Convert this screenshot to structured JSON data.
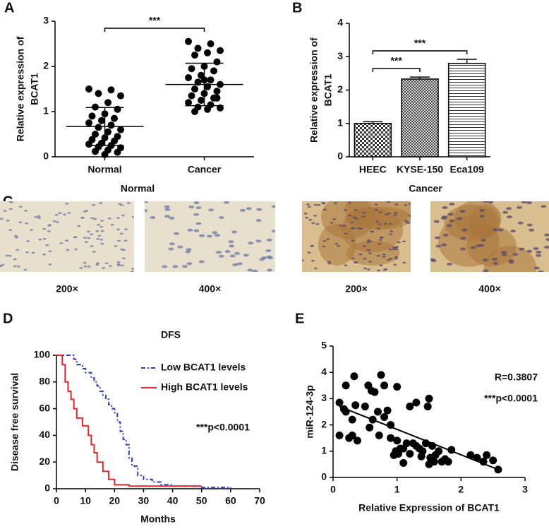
{
  "chart_data": [
    {
      "panel": "A",
      "type": "strip",
      "ylabel": [
        "Relative expression of",
        "BCAT1"
      ],
      "categories": [
        "Normal",
        "Cancer"
      ],
      "values": [
        [
          1.5,
          1.48,
          1.4,
          1.35,
          1.2,
          1.1,
          1.05,
          0.95,
          0.9,
          0.85,
          0.8,
          0.75,
          0.7,
          0.65,
          0.6,
          0.55,
          0.5,
          0.45,
          0.42,
          0.38,
          0.35,
          0.3,
          0.28,
          0.25,
          0.22,
          0.2,
          0.15,
          0.12,
          0.1,
          0.05
        ],
        [
          2.55,
          2.5,
          2.4,
          2.35,
          2.3,
          2.25,
          2.1,
          2.0,
          1.95,
          1.9,
          1.8,
          1.75,
          1.7,
          1.65,
          1.6,
          1.55,
          1.5,
          1.45,
          1.4,
          1.35,
          1.3,
          1.25,
          1.2,
          1.15,
          1.1,
          1.08,
          1.05,
          1.0,
          1.3,
          1.7
        ]
      ],
      "mean": [
        0.67,
        1.6
      ],
      "error": [
        0.42,
        0.47
      ],
      "color": "#000000",
      "ylim": [
        0,
        3
      ],
      "yticks": [
        0,
        1,
        2,
        3
      ],
      "annotations": [
        {
          "text": "***",
          "between": [
            0,
            1
          ]
        }
      ]
    },
    {
      "panel": "B",
      "type": "bar",
      "ylabel": [
        "Relative expression of",
        "BCAT1"
      ],
      "categories": [
        "HEEC",
        "KYSE-150",
        "Eca109"
      ],
      "values": [
        1.0,
        2.33,
        2.8
      ],
      "error": [
        0.05,
        0.06,
        0.12
      ],
      "fill_patterns": [
        "checker",
        "crosshatch",
        "horizontal"
      ],
      "ylim": [
        0,
        4
      ],
      "yticks": [
        0,
        1,
        2,
        3,
        4
      ],
      "annotations": [
        {
          "text": "***",
          "between": [
            0,
            1
          ]
        },
        {
          "text": "***",
          "between": [
            0,
            2
          ]
        }
      ]
    },
    {
      "panel": "D",
      "type": "step",
      "title": "DFS",
      "xlabel": "Months",
      "ylabel": "Disease free survival",
      "series": [
        {
          "name": "Low BCAT1 levels",
          "color": "#2b3fc4",
          "dash": true,
          "x": [
            0,
            5,
            6,
            7,
            9,
            10,
            12,
            13,
            14,
            15,
            16,
            17,
            18,
            19,
            20,
            21,
            22,
            23,
            24,
            25,
            26,
            28,
            30,
            33,
            36,
            40,
            50,
            60
          ],
          "values": [
            100,
            100,
            97,
            93,
            90,
            87,
            83,
            80,
            77,
            73,
            70,
            67,
            63,
            60,
            57,
            50,
            43,
            37,
            33,
            23,
            17,
            10,
            7,
            5,
            3,
            2,
            1,
            0
          ]
        },
        {
          "name": "High BCAT1 levels",
          "color": "#e8262a",
          "dash": false,
          "x": [
            0,
            2,
            3,
            4,
            5,
            6,
            7,
            9,
            11,
            12,
            13,
            14,
            16,
            18,
            20,
            25,
            50
          ],
          "values": [
            100,
            93,
            80,
            73,
            67,
            60,
            53,
            47,
            40,
            33,
            27,
            20,
            13,
            7,
            3,
            2,
            2
          ]
        }
      ],
      "xlim": [
        0,
        70
      ],
      "xticks": [
        0,
        10,
        20,
        30,
        40,
        50,
        60,
        70
      ],
      "ylim": [
        0,
        100
      ],
      "yticks": [
        0,
        20,
        40,
        60,
        80,
        100
      ],
      "legend": "upper right",
      "annotations": [
        "***p<0.0001"
      ]
    },
    {
      "panel": "E",
      "type": "scatter",
      "xlabel": "Relative Expression of BCAT1",
      "ylabel": "miR-124-3p",
      "x": [
        0.1,
        0.1,
        0.17,
        0.2,
        0.2,
        0.25,
        0.3,
        0.3,
        0.33,
        0.35,
        0.38,
        0.5,
        0.55,
        0.57,
        0.6,
        0.62,
        0.65,
        0.7,
        0.72,
        0.75,
        0.8,
        0.8,
        0.85,
        0.9,
        0.9,
        0.95,
        0.98,
        1.0,
        1.0,
        1.02,
        1.05,
        1.1,
        1.1,
        1.15,
        1.2,
        1.2,
        1.25,
        1.3,
        1.3,
        1.35,
        1.38,
        1.4,
        1.45,
        1.48,
        1.5,
        1.5,
        1.52,
        1.55,
        1.58,
        1.6,
        1.65,
        1.7,
        1.75,
        1.8,
        1.85,
        2.15,
        2.25,
        2.35,
        2.4,
        2.5,
        2.58
      ],
      "values": [
        2.85,
        1.6,
        2.6,
        3.5,
        2.5,
        1.5,
        1.6,
        2.2,
        3.85,
        2.75,
        1.4,
        2.7,
        3.5,
        1.9,
        3.3,
        2.2,
        3.25,
        2.5,
        1.6,
        3.9,
        3.5,
        2.3,
        2.55,
        1.5,
        2.0,
        0.85,
        1.0,
        3.45,
        1.4,
        0.9,
        1.1,
        1.1,
        0.55,
        1.3,
        0.9,
        2.7,
        1.3,
        1.2,
        2.85,
        1.1,
        0.8,
        1.0,
        1.3,
        2.7,
        0.5,
        3.0,
        0.75,
        1.2,
        0.6,
        0.85,
        1.0,
        0.6,
        0.7,
        0.6,
        1.05,
        0.85,
        0.75,
        0.6,
        0.85,
        0.65,
        0.3
      ],
      "fit_x": [
        0.1,
        2.58
      ],
      "fit_values": [
        2.7,
        0.3
      ],
      "color": "#000000",
      "xlim": [
        0,
        3
      ],
      "xticks": [
        0,
        1,
        2,
        3
      ],
      "ylim": [
        0,
        5
      ],
      "yticks": [
        0,
        1,
        2,
        3,
        4,
        5
      ],
      "annotations": [
        "R=0.3807",
        "***p<0.0001"
      ]
    }
  ],
  "micrographs": {
    "panel": "C",
    "groups": [
      {
        "label": "Normal",
        "images": [
          "200×",
          "400×"
        ]
      },
      {
        "label": "Cancer",
        "images": [
          "200×",
          "400×"
        ]
      }
    ]
  }
}
